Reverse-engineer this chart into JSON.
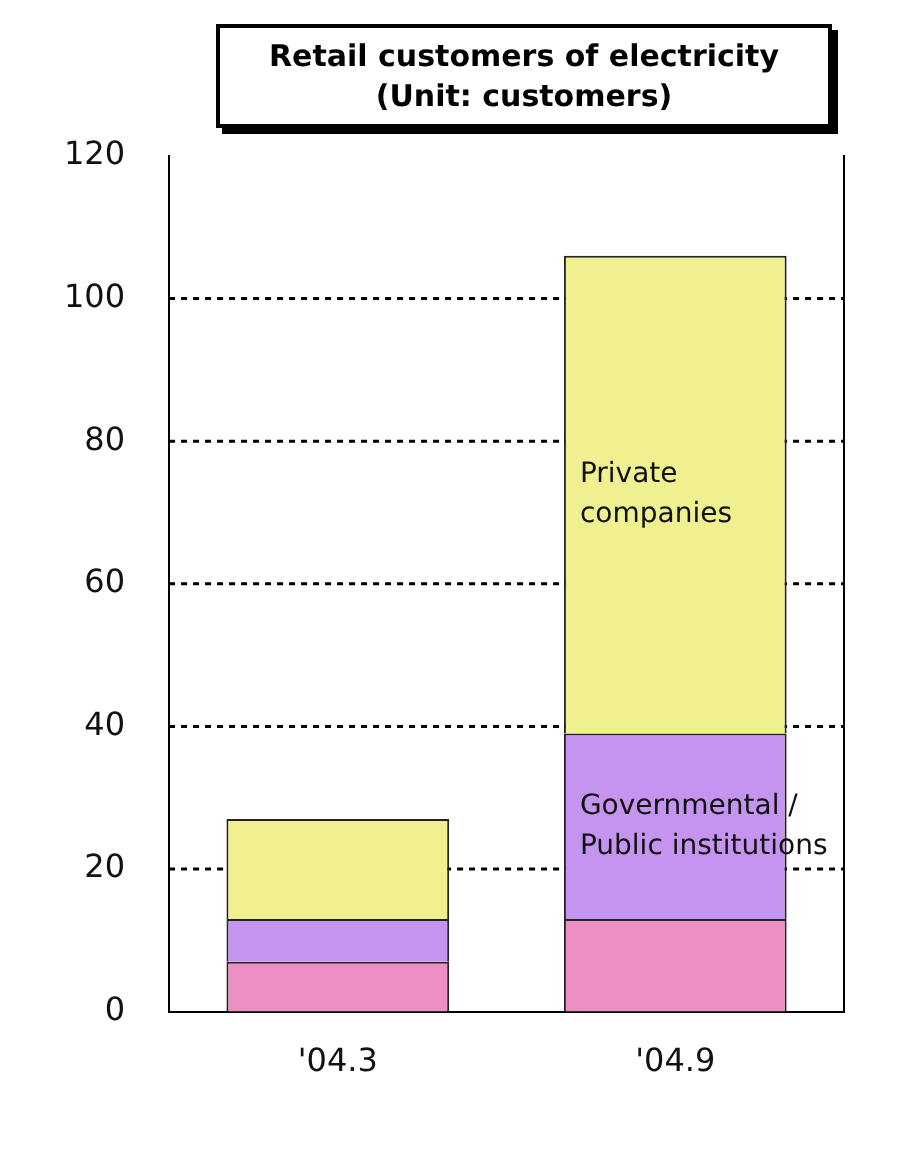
{
  "chart_data": {
    "type": "bar",
    "title": "Retail customers of electricity (Unit: customers)",
    "categories": [
      "'04.3",
      "'04.9"
    ],
    "stacked": true,
    "series": [
      {
        "color": "#ec90c4",
        "values": [
          7,
          13
        ]
      },
      {
        "name": "Governmental / Public institutions",
        "color": "#c594f0",
        "values": [
          6,
          26
        ]
      },
      {
        "name": "Private companies",
        "color": "#f0f090",
        "values": [
          14,
          67
        ]
      }
    ],
    "ylim": [
      0,
      120
    ],
    "yticks": [
      0,
      20,
      40,
      60,
      80,
      100,
      120
    ],
    "grid": "y",
    "legend": false
  }
}
